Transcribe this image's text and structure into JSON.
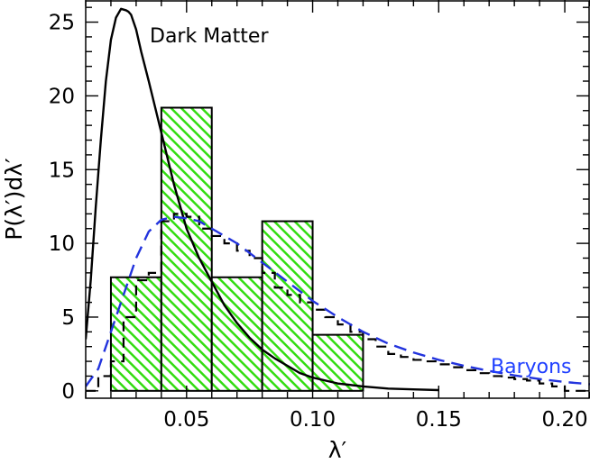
{
  "chart_data": {
    "type": "line",
    "title": "",
    "xlabel": "λ′",
    "ylabel": "P(λ′)dλ′",
    "xlim": [
      0.01,
      0.21
    ],
    "ylim": [
      -0.5,
      26.5
    ],
    "grid": false,
    "legend": "none",
    "x_ticks": [
      0.05,
      0.1,
      0.15,
      0.2
    ],
    "x_tick_labels": [
      "0.05",
      "0.10",
      "0.15",
      "0.20"
    ],
    "y_ticks": [
      0,
      5,
      10,
      15,
      20,
      25
    ],
    "y_tick_labels": [
      "0",
      "5",
      "10",
      "15",
      "20",
      "25"
    ],
    "annotations": [
      {
        "text": "Dark Matter",
        "color": "#000000"
      },
      {
        "text": "Baryons",
        "color": "#1f3fff"
      }
    ],
    "colors": {
      "dark_matter": "#000000",
      "baryons": "#2233dd",
      "hatch_fill": "#33dd11",
      "dashed_hist": "#000000"
    },
    "series": [
      {
        "kind": "hatched-histogram",
        "bin_edges": [
          0.02,
          0.04,
          0.06,
          0.08,
          0.1,
          0.12
        ],
        "values": [
          7.7,
          19.2,
          7.7,
          11.5,
          3.8
        ]
      },
      {
        "kind": "dashed-histogram",
        "bin_edges": [
          0.01,
          0.015,
          0.02,
          0.025,
          0.03,
          0.035,
          0.04,
          0.045,
          0.05,
          0.055,
          0.06,
          0.065,
          0.07,
          0.075,
          0.08,
          0.085,
          0.09,
          0.095,
          0.1,
          0.105,
          0.11,
          0.115,
          0.12,
          0.125,
          0.13,
          0.135,
          0.14,
          0.145,
          0.15,
          0.155,
          0.16,
          0.165,
          0.17,
          0.175,
          0.18,
          0.185,
          0.19,
          0.195,
          0.2,
          0.205,
          0.21
        ],
        "values": [
          0.0,
          1.0,
          2.0,
          5.0,
          7.5,
          8.0,
          11.5,
          12.0,
          11.8,
          11.0,
          10.5,
          10.0,
          9.5,
          9.0,
          8.0,
          7.0,
          6.5,
          6.0,
          5.5,
          5.0,
          4.5,
          4.0,
          3.5,
          3.0,
          2.5,
          2.3,
          2.1,
          2.0,
          1.8,
          1.6,
          1.4,
          1.2,
          1.0,
          0.9,
          0.8,
          0.7,
          0.5,
          0.3,
          0.0,
          0.0
        ]
      },
      {
        "kind": "dark-matter-curve",
        "x": [
          0.01,
          0.012,
          0.014,
          0.016,
          0.018,
          0.02,
          0.022,
          0.024,
          0.026,
          0.027,
          0.028,
          0.03,
          0.032,
          0.035,
          0.04,
          0.045,
          0.05,
          0.055,
          0.06,
          0.065,
          0.07,
          0.075,
          0.08,
          0.085,
          0.09,
          0.095,
          0.1,
          0.11,
          0.12,
          0.13,
          0.14,
          0.15
        ],
        "y": [
          3.5,
          7.5,
          12.5,
          17.0,
          21.0,
          23.8,
          25.3,
          25.9,
          25.8,
          25.7,
          25.5,
          24.5,
          23.0,
          21.0,
          17.5,
          14.0,
          11.0,
          9.0,
          7.4,
          5.8,
          4.6,
          3.6,
          2.8,
          2.2,
          1.7,
          1.2,
          0.9,
          0.5,
          0.3,
          0.15,
          0.1,
          0.05
        ]
      },
      {
        "kind": "baryons-curve",
        "x": [
          0.01,
          0.015,
          0.02,
          0.025,
          0.03,
          0.035,
          0.04,
          0.045,
          0.05,
          0.055,
          0.06,
          0.07,
          0.08,
          0.09,
          0.1,
          0.11,
          0.12,
          0.13,
          0.14,
          0.15,
          0.16,
          0.17,
          0.18,
          0.19,
          0.2,
          0.21
        ],
        "y": [
          0.3,
          1.5,
          4.0,
          6.5,
          9.0,
          10.8,
          11.6,
          11.8,
          11.7,
          11.5,
          11.0,
          10.0,
          8.7,
          7.4,
          6.1,
          5.0,
          4.0,
          3.2,
          2.6,
          2.1,
          1.7,
          1.35,
          1.05,
          0.8,
          0.6,
          0.45
        ]
      }
    ]
  }
}
